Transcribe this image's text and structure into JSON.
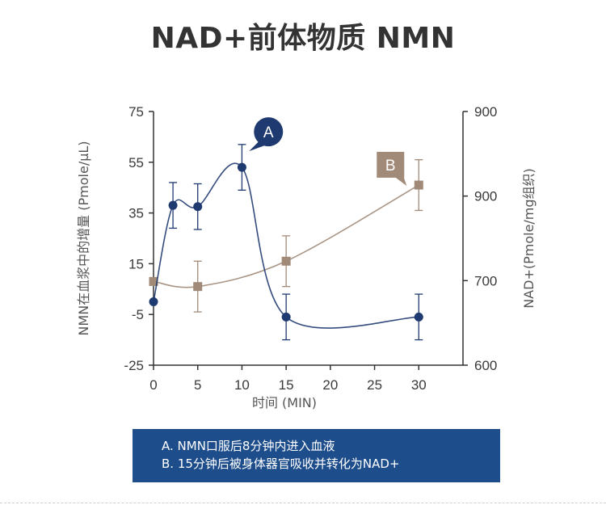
{
  "title": "NAD+前体物质 NMN",
  "chart_data": {
    "type": "line",
    "xlabel": "时间 (MIN)",
    "x_ticks": [
      0,
      5,
      10,
      15,
      20,
      25,
      30
    ],
    "xlim": [
      0,
      35
    ],
    "y_left": {
      "label": "NMN在血浆中的增量 (Pmole/μL)",
      "ticks": [
        "75",
        "55",
        "35",
        "15",
        "-5",
        "-25"
      ],
      "ylim": [
        -25,
        75
      ]
    },
    "y_right": {
      "label": "NAD+(Pmole/mg组织)",
      "ticks": [
        "900",
        "900",
        "700",
        "600"
      ]
    },
    "series": [
      {
        "name": "A",
        "color": "#1f3a70",
        "x": [
          0,
          2.2,
          5,
          10,
          15,
          30
        ],
        "y": [
          0,
          38,
          37.5,
          53,
          -6,
          -6
        ],
        "err": [
          0,
          9,
          9,
          9,
          9,
          9
        ]
      },
      {
        "name": "B",
        "color": "#a18a78",
        "x": [
          0,
          5,
          15,
          30
        ],
        "y": [
          8,
          6,
          16,
          46
        ],
        "err": [
          0,
          10,
          10,
          10
        ]
      }
    ],
    "annotations": [
      {
        "label": "A",
        "x": 13,
        "y": 67
      },
      {
        "label": "B",
        "x": 26.8,
        "y": 54
      }
    ]
  },
  "legend": {
    "line_a": "A. NMN口服后8分钟内进入血液",
    "line_b": "B. 15分钟后被身体器官吸收并转化为NAD+"
  }
}
